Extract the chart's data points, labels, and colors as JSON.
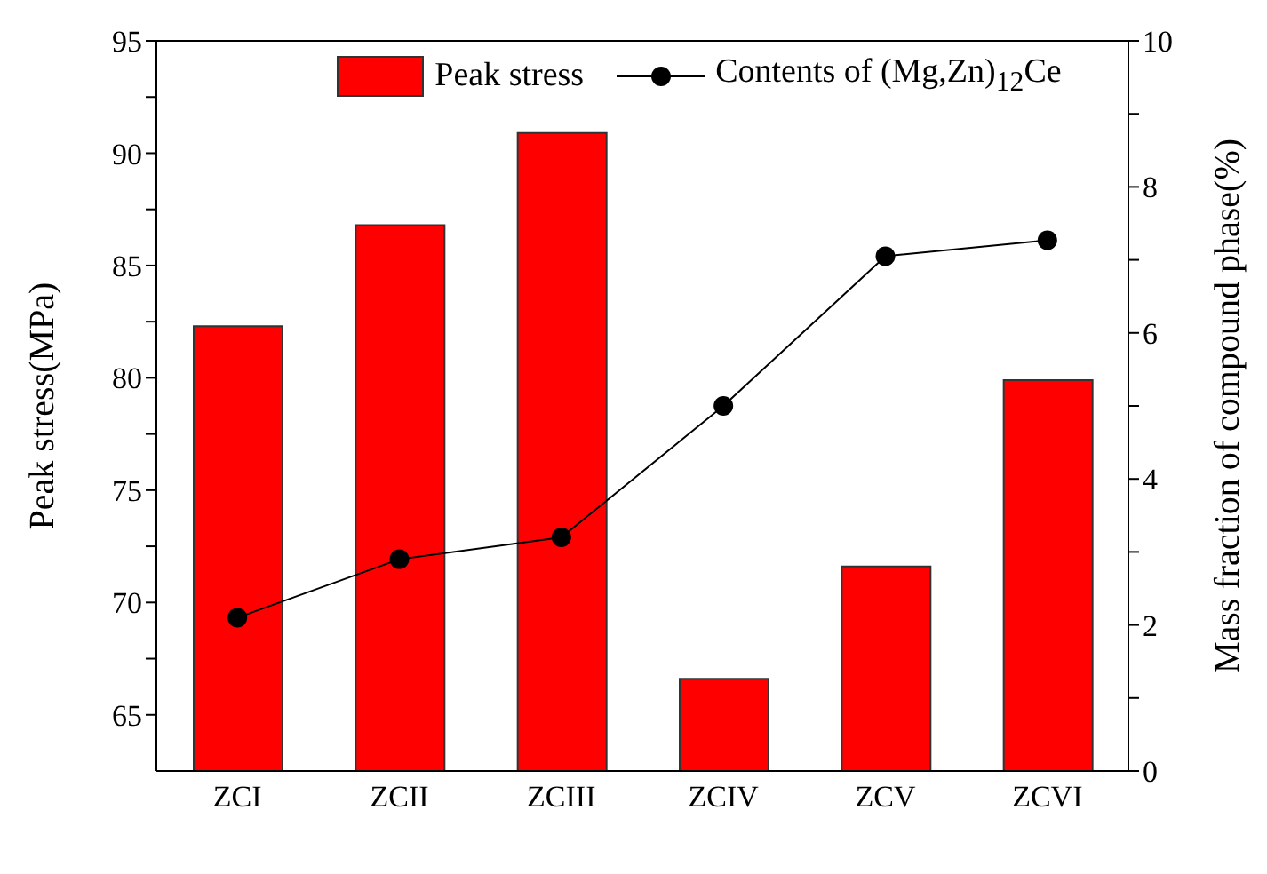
{
  "chart_data": {
    "type": "bar",
    "categories": [
      "ZCI",
      "ZCII",
      "ZCIII",
      "ZCIV",
      "ZCV",
      "ZCVI"
    ],
    "ylabel": "Peak stress(MPa)",
    "y2label": "Mass fraction of compound phase(%)",
    "ylim": [
      62.5,
      95
    ],
    "yticks": [
      65,
      {
        "value": 67.5,
        "label": null
      },
      70,
      {
        "value": 72.5,
        "label": null
      },
      75,
      {
        "value": 77.5,
        "label": null
      },
      80,
      {
        "value": 82.5,
        "label": null
      },
      85,
      {
        "value": 87.5,
        "label": null
      },
      90,
      {
        "value": 92.5,
        "label": null
      },
      95
    ],
    "y2lim": [
      0,
      10
    ],
    "y2ticks": [
      0,
      {
        "value": 1,
        "label": null
      },
      2,
      {
        "value": 3,
        "label": null
      },
      4,
      {
        "value": 5,
        "label": null
      },
      6,
      {
        "value": 7,
        "label": null
      },
      8,
      {
        "value": 9,
        "label": null
      },
      10
    ],
    "legend": "top",
    "grid": false,
    "series": [
      {
        "name": "Peak stress",
        "color": "#ff0000",
        "values": [
          82.3,
          86.8,
          90.9,
          66.6,
          71.6,
          79.9
        ]
      },
      {
        "name": "Contents of (Mg,Zn)$_{12}$Ce",
        "type": "line",
        "axis": "y2",
        "color": "#000000",
        "marker": "circle",
        "values": [
          2.1,
          2.9,
          3.2,
          5.0,
          7.05,
          7.27
        ]
      }
    ]
  }
}
